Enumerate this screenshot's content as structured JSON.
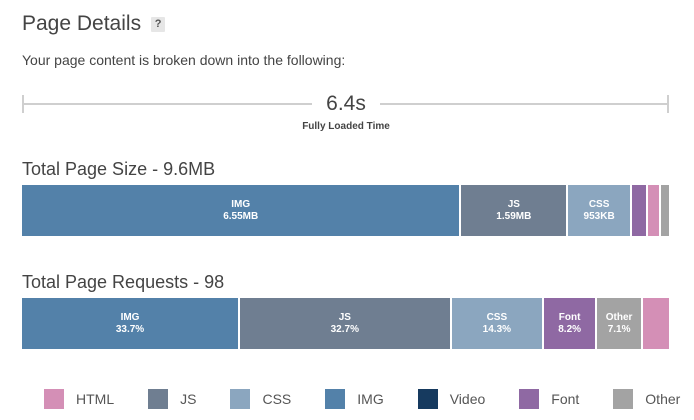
{
  "header": {
    "title": "Page Details",
    "help_label": "?",
    "intro": "Your page content is broken down into the following:"
  },
  "load_time": {
    "value": "6.4s",
    "caption": "Fully Loaded Time"
  },
  "colors": {
    "HTML": "#d48fb6",
    "JS": "#6f7e91",
    "CSS": "#8ba6bf",
    "IMG": "#5381a9",
    "Video": "#163a5f",
    "Font": "#8f69a3",
    "Other": "#a3a3a3"
  },
  "page_size": {
    "title": "Total Page Size - 9.6MB",
    "segments": [
      {
        "type": "IMG",
        "label": "IMG",
        "value": "6.55MB",
        "share": 6.55
      },
      {
        "type": "JS",
        "label": "JS",
        "value": "1.59MB",
        "share": 1.59
      },
      {
        "type": "CSS",
        "label": "CSS",
        "value": "953KB",
        "share": 0.953
      },
      {
        "type": "Font",
        "label": "",
        "value": "",
        "share": 0.24
      },
      {
        "type": "HTML",
        "label": "",
        "value": "",
        "share": 0.19
      },
      {
        "type": "Other",
        "label": "",
        "value": "",
        "share": 0.12
      }
    ]
  },
  "page_requests": {
    "title": "Total Page Requests - 98",
    "segments": [
      {
        "type": "IMG",
        "label": "IMG",
        "value": "33.7%",
        "share": 33.7
      },
      {
        "type": "JS",
        "label": "JS",
        "value": "32.7%",
        "share": 32.7
      },
      {
        "type": "CSS",
        "label": "CSS",
        "value": "14.3%",
        "share": 14.3
      },
      {
        "type": "Font",
        "label": "Font",
        "value": "8.2%",
        "share": 8.2
      },
      {
        "type": "Other",
        "label": "Other",
        "value": "7.1%",
        "share": 7.1
      },
      {
        "type": "HTML",
        "label": "",
        "value": "",
        "share": 4.0
      }
    ]
  },
  "legend": [
    {
      "type": "HTML",
      "label": "HTML"
    },
    {
      "type": "JS",
      "label": "JS"
    },
    {
      "type": "CSS",
      "label": "CSS"
    },
    {
      "type": "IMG",
      "label": "IMG"
    },
    {
      "type": "Video",
      "label": "Video"
    },
    {
      "type": "Font",
      "label": "Font"
    },
    {
      "type": "Other",
      "label": "Other"
    }
  ]
}
